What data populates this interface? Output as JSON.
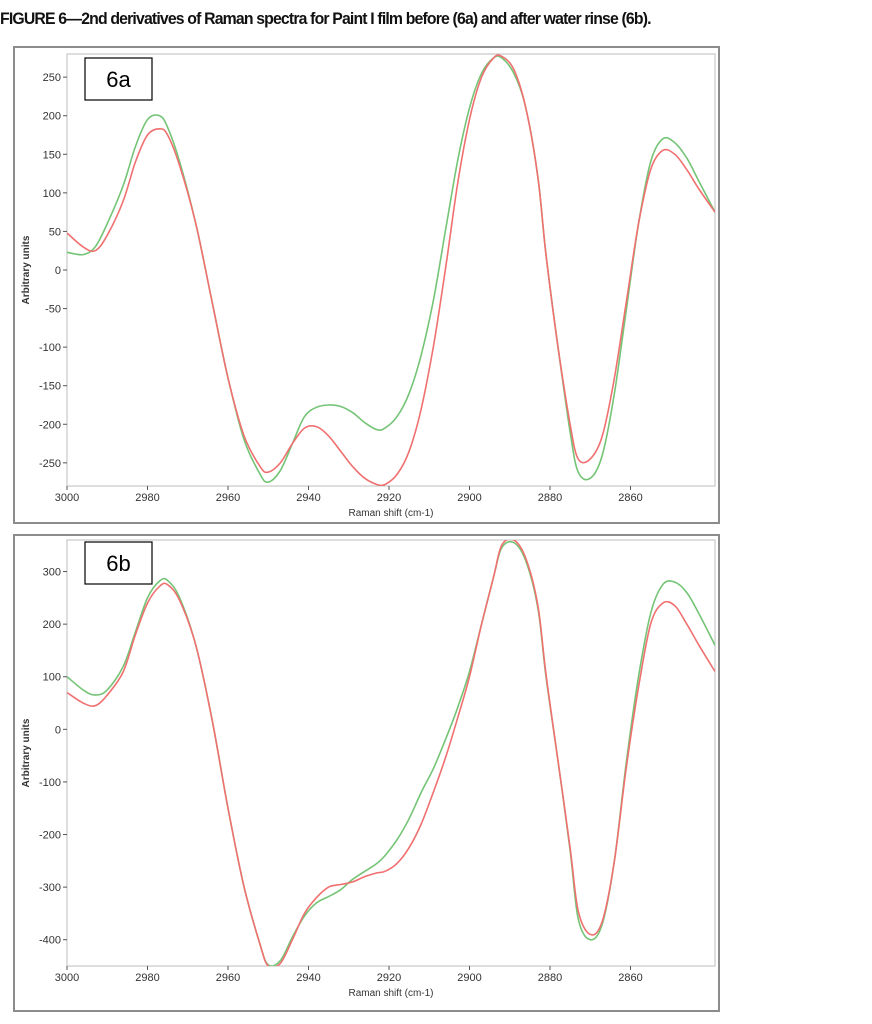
{
  "caption": "FIGURE 6—2nd derivatives of Raman spectra for Paint I film before (6a) and after water rinse (6b).",
  "colors": {
    "green": "#74c476",
    "red": "#f07070"
  },
  "chart_data": [
    {
      "id": "6a",
      "panel_label": "6a",
      "type": "line",
      "title": "",
      "xlabel": "Raman shift (cm-1)",
      "ylabel": "Arbitrary units",
      "xlim": [
        3000,
        2839
      ],
      "ylim": [
        -280,
        280
      ],
      "x_ticks": [
        3000,
        2980,
        2960,
        2940,
        2920,
        2900,
        2880,
        2860
      ],
      "y_ticks": [
        250,
        200,
        150,
        100,
        50,
        0,
        -50,
        -100,
        -150,
        -200,
        -250
      ],
      "grid": false,
      "series": [
        {
          "color": "#74c476",
          "x": [
            3000,
            2996,
            2993,
            2990,
            2986,
            2983,
            2980,
            2977,
            2975,
            2972,
            2968,
            2964,
            2960,
            2956,
            2952,
            2950,
            2947,
            2944,
            2941,
            2938,
            2935,
            2932,
            2929,
            2926,
            2923,
            2921,
            2918,
            2915,
            2912,
            2909,
            2906,
            2903,
            2900,
            2897,
            2894,
            2892,
            2889,
            2886,
            2883,
            2881,
            2878,
            2875,
            2873,
            2870,
            2867,
            2864,
            2861,
            2858,
            2855,
            2852,
            2849,
            2846,
            2843,
            2839
          ],
          "y": [
            23,
            20,
            30,
            60,
            110,
            160,
            195,
            200,
            185,
            140,
            60,
            -40,
            -140,
            -220,
            -265,
            -275,
            -260,
            -225,
            -190,
            -178,
            -175,
            -177,
            -185,
            -198,
            -207,
            -205,
            -190,
            -160,
            -110,
            -40,
            50,
            140,
            210,
            255,
            275,
            275,
            255,
            210,
            120,
            20,
            -100,
            -210,
            -262,
            -270,
            -240,
            -160,
            -50,
            60,
            140,
            170,
            165,
            145,
            115,
            75
          ]
        },
        {
          "color": "#f07070",
          "x": [
            3000,
            2996,
            2993,
            2990,
            2986,
            2983,
            2980,
            2977,
            2975,
            2972,
            2968,
            2964,
            2960,
            2956,
            2952,
            2950,
            2947,
            2944,
            2941,
            2938,
            2935,
            2932,
            2929,
            2926,
            2923,
            2921,
            2918,
            2915,
            2912,
            2909,
            2906,
            2903,
            2900,
            2897,
            2894,
            2892,
            2889,
            2886,
            2883,
            2881,
            2878,
            2875,
            2873,
            2870,
            2867,
            2864,
            2861,
            2858,
            2855,
            2852,
            2849,
            2846,
            2843,
            2839
          ],
          "y": [
            48,
            30,
            25,
            45,
            90,
            140,
            175,
            183,
            175,
            135,
            60,
            -40,
            -140,
            -215,
            -255,
            -262,
            -250,
            -225,
            -205,
            -203,
            -215,
            -235,
            -255,
            -270,
            -278,
            -278,
            -265,
            -235,
            -180,
            -100,
            0,
            110,
            195,
            250,
            275,
            277,
            260,
            210,
            120,
            20,
            -100,
            -200,
            -245,
            -245,
            -215,
            -140,
            -40,
            60,
            130,
            155,
            150,
            130,
            105,
            75
          ]
        }
      ]
    },
    {
      "id": "6b",
      "panel_label": "6b",
      "type": "line",
      "title": "",
      "xlabel": "Raman shift (cm-1)",
      "ylabel": "Arbitrary units",
      "xlim": [
        3000,
        2839
      ],
      "ylim": [
        -450,
        360
      ],
      "x_ticks": [
        3000,
        2980,
        2960,
        2940,
        2920,
        2900,
        2880,
        2860
      ],
      "y_ticks": [
        300,
        200,
        100,
        0,
        -100,
        -200,
        -300,
        -400
      ],
      "grid": false,
      "series": [
        {
          "color": "#74c476",
          "x": [
            3000,
            2996,
            2993,
            2990,
            2986,
            2983,
            2980,
            2977,
            2975,
            2972,
            2968,
            2964,
            2960,
            2956,
            2952,
            2950,
            2947,
            2944,
            2941,
            2938,
            2935,
            2932,
            2929,
            2926,
            2923,
            2921,
            2918,
            2915,
            2912,
            2909,
            2906,
            2903,
            2900,
            2897,
            2894,
            2892,
            2889,
            2886,
            2883,
            2881,
            2878,
            2875,
            2873,
            2870,
            2867,
            2864,
            2861,
            2858,
            2855,
            2852,
            2849,
            2846,
            2843,
            2839
          ],
          "y": [
            100,
            75,
            65,
            75,
            120,
            185,
            250,
            282,
            283,
            250,
            160,
            20,
            -150,
            -300,
            -410,
            -448,
            -440,
            -395,
            -355,
            -330,
            -318,
            -305,
            -285,
            -270,
            -255,
            -240,
            -210,
            -170,
            -120,
            -75,
            -20,
            40,
            110,
            200,
            290,
            345,
            355,
            320,
            230,
            100,
            -60,
            -230,
            -360,
            -400,
            -370,
            -250,
            -60,
            100,
            220,
            275,
            280,
            260,
            220,
            160
          ]
        },
        {
          "color": "#f07070",
          "x": [
            3000,
            2996,
            2993,
            2990,
            2986,
            2983,
            2980,
            2977,
            2975,
            2972,
            2968,
            2964,
            2960,
            2956,
            2952,
            2950,
            2947,
            2944,
            2941,
            2938,
            2935,
            2932,
            2929,
            2926,
            2923,
            2921,
            2918,
            2915,
            2912,
            2909,
            2906,
            2903,
            2900,
            2897,
            2894,
            2892,
            2889,
            2886,
            2883,
            2881,
            2878,
            2875,
            2873,
            2870,
            2867,
            2864,
            2861,
            2858,
            2855,
            2852,
            2849,
            2846,
            2843,
            2839
          ],
          "y": [
            70,
            50,
            45,
            65,
            110,
            180,
            240,
            272,
            275,
            245,
            160,
            20,
            -150,
            -300,
            -410,
            -450,
            -445,
            -400,
            -350,
            -320,
            -300,
            -295,
            -290,
            -280,
            -273,
            -270,
            -255,
            -225,
            -180,
            -120,
            -55,
            20,
            100,
            200,
            290,
            350,
            360,
            325,
            235,
            105,
            -60,
            -225,
            -345,
            -390,
            -365,
            -250,
            -70,
            80,
            200,
            240,
            235,
            200,
            160,
            110
          ]
        }
      ]
    }
  ]
}
